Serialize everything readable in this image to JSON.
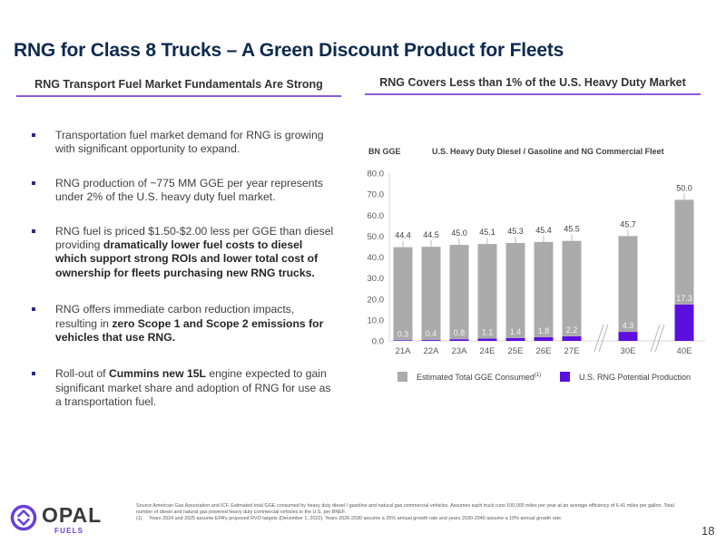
{
  "page": {
    "title": "RNG for Class 8 Trucks – A Green Discount Product for Fleets",
    "page_number": "18"
  },
  "left_section": {
    "heading": "RNG Transport Fuel Market Fundamentals Are Strong",
    "bullets": [
      {
        "segments": [
          {
            "text": "Transportation fuel market demand for RNG is growing with significant opportunity to expand.",
            "bold": false
          }
        ]
      },
      {
        "segments": [
          {
            "text": "RNG production of ~775 MM GGE per year represents under 2% of the U.S. heavy duty fuel market.",
            "bold": false
          }
        ]
      },
      {
        "segments": [
          {
            "text": "RNG fuel is priced $1.50-$2.00 less per GGE than diesel providing ",
            "bold": false
          },
          {
            "text": "dramatically lower fuel costs to diesel which support strong ROIs and lower total cost of ownership for fleets purchasing new RNG trucks.",
            "bold": true
          }
        ]
      },
      {
        "segments": [
          {
            "text": "RNG offers immediate carbon reduction impacts, resulting in ",
            "bold": false
          },
          {
            "text": "zero Scope 1 and Scope 2 emissions for vehicles that use RNG.",
            "bold": true
          }
        ]
      },
      {
        "segments": [
          {
            "text": "Roll-out of ",
            "bold": false
          },
          {
            "text": "Cummins new 15L",
            "bold": true
          },
          {
            "text": " engine expected to gain significant market share and adoption of RNG for use as a transportation fuel.",
            "bold": false
          }
        ]
      }
    ]
  },
  "right_section": {
    "heading": "RNG Covers Less than 1% of the U.S. Heavy Duty Market"
  },
  "chart_data": {
    "type": "bar",
    "stacked": true,
    "title": "U.S. Heavy Duty Diesel / Gasoline and NG Commercial Fleet",
    "ylabel": "BN GGE",
    "xlabel": "",
    "categories": [
      "21A",
      "22A",
      "23A",
      "24E",
      "25E",
      "26E",
      "27E",
      "30E",
      "40E"
    ],
    "axis_breaks_after": [
      "27E",
      "30E"
    ],
    "ylim": [
      0,
      80
    ],
    "yticks": [
      "0.0",
      "10.0",
      "20.0",
      "30.0",
      "40.0",
      "50.0",
      "60.0",
      "70.0",
      "80.0"
    ],
    "grid": false,
    "series": [
      {
        "name": "U.S. RNG Potential Production",
        "color": "#5b10e0",
        "values": [
          0.3,
          0.4,
          0.8,
          1.1,
          1.4,
          1.8,
          2.2,
          4.3,
          17.3
        ],
        "labels": [
          "0.3",
          "0.4",
          "0.8",
          "1.1",
          "1.4",
          "1.8",
          "2.2",
          "4.3",
          "17.3"
        ]
      },
      {
        "name": "Estimated Total GGE Consumed",
        "name_superscript": "(1)",
        "color": "#ababab",
        "values": [
          44.4,
          44.5,
          45.0,
          45.1,
          45.3,
          45.4,
          45.5,
          45.7,
          50.0
        ],
        "labels": [
          "44.4",
          "44.5",
          "45.0",
          "45.1",
          "45.3",
          "45.4",
          "45.5",
          "45.7",
          "50.0"
        ]
      }
    ],
    "legend": [
      {
        "label": "Estimated Total GGE Consumed",
        "superscript": "(1)",
        "color": "#ababab"
      },
      {
        "label": "U.S. RNG Potential Production",
        "color": "#5b10e0"
      }
    ],
    "legend_position": "bottom"
  },
  "footer": {
    "logo_text": "OPAL",
    "logo_subtext": "FUELS",
    "source": "Source American Gas Association and ICF. Estimated total GGE consumed by heavy duty diesel / gasoline and natural gas commercial vehicles. Assumes each truck runs 100,000 miles per year at an average efficiency of 6.41 miles per gallon. Total number of diesel and natural gas powered heavy duty commercial vehicles in the U.S. per BNEF.",
    "footnote_number": "(1)",
    "footnote_text": "Years 2024 and 2025 assume EPA’s proposed RVO targets (December 1, 2022). Years 2026-2030 assume a 25% annual growth rate and years 2030-2040 assume a 10% annual growth rate."
  },
  "colors": {
    "title": "#0f2a4e",
    "accent_underline": "#8a5cd6",
    "rng_purple": "#5b10e0",
    "gge_gray": "#ababab",
    "logo_purple": "#6a3fd8",
    "logo_dark": "#3a3a3a"
  }
}
